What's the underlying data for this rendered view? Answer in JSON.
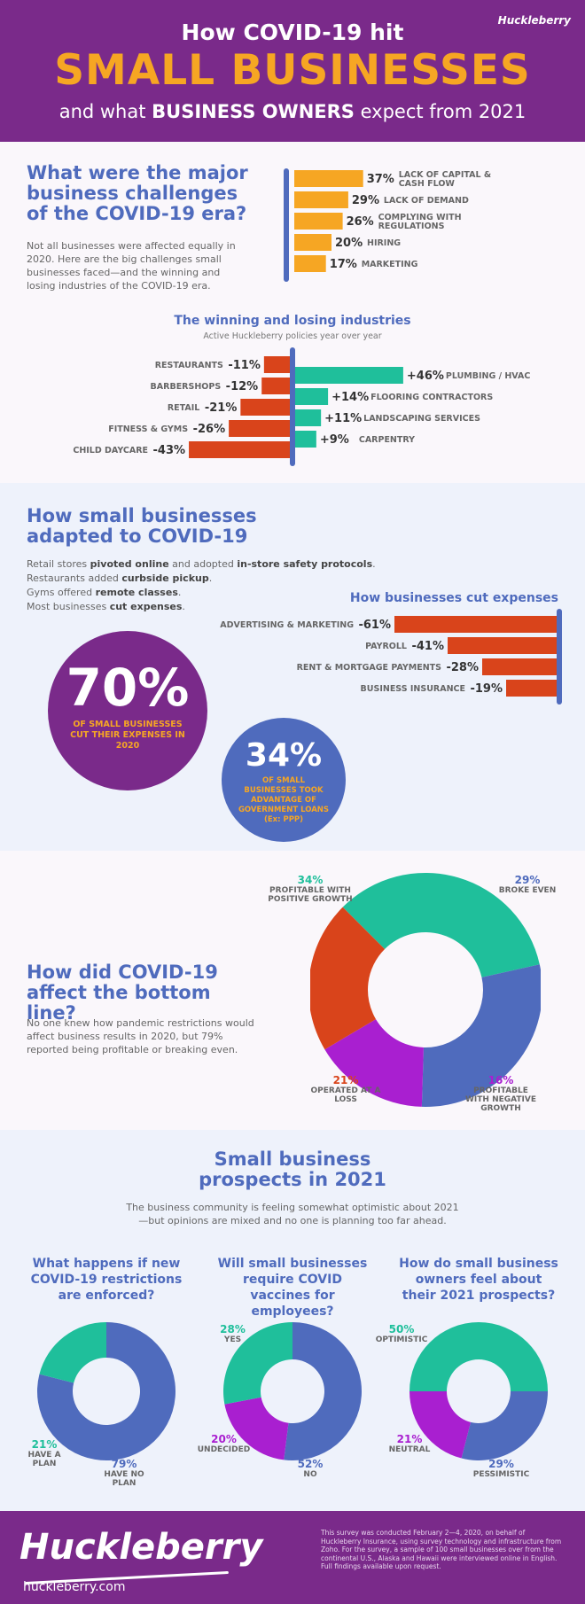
{
  "header": {
    "title_line1": "How COVID-19 hit",
    "title_line2": "SMALL BUSINESSES",
    "title_line3_pre": "and what ",
    "title_line3_bold": "BUSINESS OWNERS",
    "title_line3_post": " expect from 2021",
    "logo": "Huckleberry"
  },
  "colors": {
    "purple": "#7a2a8a",
    "orange": "#f6a623",
    "red": "#d9441b",
    "teal": "#1fbf9b",
    "blue": "#4f6bbd",
    "magenta": "#a91fd0"
  },
  "section1": {
    "title": "What were the major business challenges of the COVID-19 era?",
    "body": "Not all businesses were affected equally in 2020. Here are the big challenges small businesses faced—and the winning and losing industries of the COVID-19 era.",
    "industries_title": "The winning and losing industries",
    "industries_subtitle": "Active Huckleberry policies year over year"
  },
  "section2": {
    "title": "How small businesses adapted to COVID-19",
    "lines": [
      {
        "pre": "Retail stores ",
        "b1": "pivoted online",
        "mid": " and adopted ",
        "b2": "in-store safety protocols",
        "post": "."
      },
      {
        "pre": "Restaurants added ",
        "b1": "curbside pickup",
        "mid": ".",
        "b2": "",
        "post": ""
      },
      {
        "pre": "Gyms offered ",
        "b1": "remote classes",
        "mid": ".",
        "b2": "",
        "post": ""
      },
      {
        "pre": "Most businesses ",
        "b1": "cut expenses",
        "mid": ".",
        "b2": "",
        "post": ""
      }
    ],
    "expenses_title": "How businesses cut expenses",
    "stat1_value": "70%",
    "stat1_text": "OF SMALL BUSINESSES CUT THEIR EXPENSES IN 2020",
    "stat2_value": "34%",
    "stat2_text": "OF SMALL BUSINESSES TOOK ADVANTAGE OF GOVERNMENT LOANS (Ex: PPP)"
  },
  "section3": {
    "title": "How did COVID-19 affect the bottom line?",
    "body": "No one knew how pandemic restrictions would affect business results in 2020, but 79% reported being profitable or breaking even."
  },
  "section4": {
    "title": "Small business prospects in 2021",
    "body": "The business community is feeling somewhat optimistic about 2021—but opinions are mixed and no one is planning too far ahead.",
    "q1": "What happens if new COVID-19 restrictions are enforced?",
    "q2": "Will small businesses require COVID vaccines for employees?",
    "q3": "How do small business owners feel about their 2021 prospects?"
  },
  "footer": {
    "logo": "Huckleberry",
    "url": "huckleberry.com",
    "note": "This survey was conducted February 2—4, 2020, on behalf of Huckleberry Insurance, using survey technology and infrastructure from Zoho. For the survey, a sample of 100 small businesses over from the continental U.S., Alaska and Hawaii were interviewed online in English. Full findings available upon request."
  },
  "chart_data": [
    {
      "id": "challenges",
      "type": "bar",
      "categories": [
        "LACK OF CAPITAL & CASH FLOW",
        "LACK OF DEMAND",
        "COMPLYING WITH REGULATIONS",
        "HIRING",
        "MARKETING"
      ],
      "values": [
        37,
        29,
        26,
        20,
        17
      ],
      "labels": [
        "37%",
        "29%",
        "26%",
        "20%",
        "17%"
      ],
      "color": "#f6a623"
    },
    {
      "id": "losers",
      "type": "bar",
      "categories": [
        "RESTAURANTS",
        "BARBERSHOPS",
        "RETAIL",
        "FITNESS & GYMS",
        "CHILD DAYCARE"
      ],
      "values": [
        -11,
        -12,
        -21,
        -26,
        -43
      ],
      "labels": [
        "-11%",
        "-12%",
        "-21%",
        "-26%",
        "-43%"
      ],
      "color": "#d9441b"
    },
    {
      "id": "winners",
      "type": "bar",
      "categories": [
        "PLUMBING / HVAC",
        "FLOORING CONTRACTORS",
        "LANDSCAPING SERVICES",
        "CARPENTRY"
      ],
      "values": [
        46,
        14,
        11,
        9
      ],
      "labels": [
        "+46%",
        "+14%",
        "+11%",
        "+9%"
      ],
      "color": "#1fbf9b"
    },
    {
      "id": "expenses",
      "type": "bar",
      "title": "How businesses cut expenses",
      "categories": [
        "ADVERTISING & MARKETING",
        "PAYROLL",
        "RENT & MORTGAGE PAYMENTS",
        "BUSINESS INSURANCE"
      ],
      "values": [
        -61,
        -41,
        -28,
        -19
      ],
      "labels": [
        "-61%",
        "-41%",
        "-28%",
        "-19%"
      ],
      "color": "#d9441b"
    },
    {
      "id": "bottomline",
      "type": "pie",
      "slices": [
        {
          "label": "PROFITABLE WITH POSITIVE GROWTH",
          "value": 34,
          "pct": "34%",
          "color": "#1fbf9b"
        },
        {
          "label": "BROKE EVEN",
          "value": 29,
          "pct": "29%",
          "color": "#4f6bbd"
        },
        {
          "label": "PROFITABLE WITH NEGATIVE GROWTH",
          "value": 16,
          "pct": "16%",
          "color": "#a91fd0"
        },
        {
          "label": "OPERATED AT A LOSS",
          "value": 21,
          "pct": "21%",
          "color": "#d9441b"
        }
      ]
    },
    {
      "id": "restrictions",
      "type": "pie",
      "slices": [
        {
          "label": "HAVE NO PLAN",
          "value": 79,
          "pct": "79%",
          "color": "#4f6bbd"
        },
        {
          "label": "HAVE A PLAN",
          "value": 21,
          "pct": "21%",
          "color": "#1fbf9b"
        }
      ]
    },
    {
      "id": "vaccines",
      "type": "pie",
      "slices": [
        {
          "label": "NO",
          "value": 52,
          "pct": "52%",
          "color": "#4f6bbd"
        },
        {
          "label": "UNDECIDED",
          "value": 20,
          "pct": "20%",
          "color": "#a91fd0"
        },
        {
          "label": "YES",
          "value": 28,
          "pct": "28%",
          "color": "#1fbf9b"
        }
      ]
    },
    {
      "id": "prospects",
      "type": "pie",
      "slices": [
        {
          "label": "OPTIMISTIC",
          "value": 50,
          "pct": "50%",
          "color": "#1fbf9b"
        },
        {
          "label": "PESSIMISTIC",
          "value": 29,
          "pct": "29%",
          "color": "#4f6bbd"
        },
        {
          "label": "NEUTRAL",
          "value": 21,
          "pct": "21%",
          "color": "#a91fd0"
        }
      ]
    }
  ]
}
